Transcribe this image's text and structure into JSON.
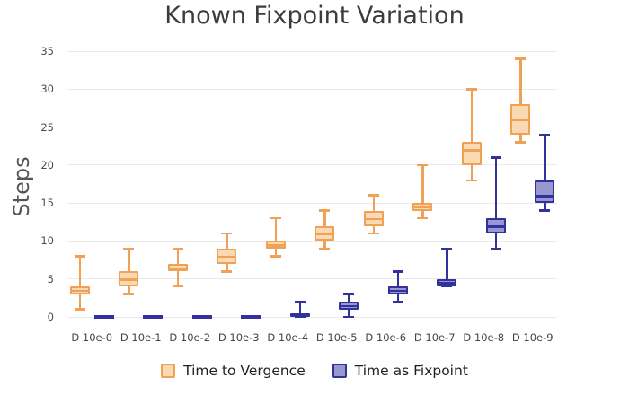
{
  "chart_data": {
    "type": "box",
    "title": "Known Fixpoint Variation",
    "xlabel": "",
    "ylabel": "Steps",
    "categories": [
      "D 10e-0",
      "D 10e-1",
      "D 10e-2",
      "D 10e-3",
      "D 10e-4",
      "D 10e-5",
      "D 10e-6",
      "D 10e-7",
      "D 10e-8",
      "D 10e-9"
    ],
    "y_ticks": [
      0,
      5,
      10,
      15,
      20,
      25,
      30,
      35
    ],
    "ylim": [
      0,
      35
    ],
    "grid": true,
    "legend_position": "bottom",
    "series": [
      {
        "name": "Time to Vergence",
        "line_color": "#f0a155",
        "fill_color": "#fbd9b2",
        "boxes": [
          {
            "min": 1,
            "q1": 3,
            "median": 3.5,
            "q3": 4,
            "max": 8
          },
          {
            "min": 3,
            "q1": 4,
            "median": 5,
            "q3": 6,
            "max": 9
          },
          {
            "min": 4,
            "q1": 6,
            "median": 6.5,
            "q3": 7,
            "max": 9
          },
          {
            "min": 6,
            "q1": 7,
            "median": 8,
            "q3": 9,
            "max": 11
          },
          {
            "min": 8,
            "q1": 9,
            "median": 9.5,
            "q3": 10,
            "max": 13
          },
          {
            "min": 9,
            "q1": 10,
            "median": 11,
            "q3": 12,
            "max": 14
          },
          {
            "min": 11,
            "q1": 12,
            "median": 13,
            "q3": 14,
            "max": 16
          },
          {
            "min": 13,
            "q1": 14,
            "median": 14.5,
            "q3": 15,
            "max": 20
          },
          {
            "min": 18,
            "q1": 20,
            "median": 22,
            "q3": 23,
            "max": 30
          },
          {
            "min": 23,
            "q1": 24,
            "median": 26,
            "q3": 28,
            "max": 34
          }
        ]
      },
      {
        "name": "Time as Fixpoint",
        "line_color": "#32329e",
        "fill_color": "#9898ce",
        "boxes": [
          {
            "min": 0,
            "q1": 0,
            "median": 0,
            "q3": 0,
            "max": 0
          },
          {
            "min": 0,
            "q1": 0,
            "median": 0,
            "q3": 0,
            "max": 0
          },
          {
            "min": 0,
            "q1": 0,
            "median": 0,
            "q3": 0,
            "max": 0
          },
          {
            "min": 0,
            "q1": 0,
            "median": 0,
            "q3": 0,
            "max": 0
          },
          {
            "min": 0,
            "q1": 0,
            "median": 0,
            "q3": 0.5,
            "max": 2
          },
          {
            "min": 0,
            "q1": 1,
            "median": 1.5,
            "q3": 2,
            "max": 3
          },
          {
            "min": 2,
            "q1": 3,
            "median": 3.5,
            "q3": 4,
            "max": 6
          },
          {
            "min": 4,
            "q1": 4,
            "median": 4.5,
            "q3": 5,
            "max": 9
          },
          {
            "min": 9,
            "q1": 11,
            "median": 12,
            "q3": 13,
            "max": 21
          },
          {
            "min": 14,
            "q1": 15,
            "median": 16,
            "q3": 18,
            "max": 24
          }
        ]
      }
    ],
    "style": {
      "gridline_color": "#eaeaea",
      "title_color": "#3c3c3c",
      "tick_color": "#4b4b4b",
      "background": "#ffffff"
    }
  }
}
